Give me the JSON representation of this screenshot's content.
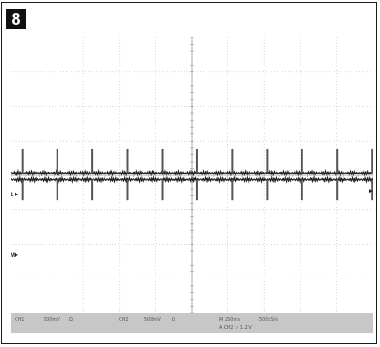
{
  "figure": {
    "number": "8"
  },
  "colors": {
    "background": "#ffffff",
    "grid": "#c8c8c8",
    "trace": "#202020",
    "status_bar": "#c7c7c7",
    "status_text": "#555555"
  },
  "chart_data": {
    "type": "line",
    "title": "",
    "xlabel": "",
    "ylabel": "",
    "grid": true,
    "x_divisions": 10,
    "y_divisions": 8,
    "ylim": [
      -4,
      4
    ],
    "xlim": [
      0,
      10
    ],
    "markers": [
      {
        "label": "1",
        "level": -0.55
      },
      {
        "label": "M",
        "level": -2.3
      }
    ],
    "series": [
      {
        "baseline": 0.07,
        "pulse_positions": [
          0.32,
          1.28,
          2.25,
          3.22,
          4.18,
          5.15,
          6.12,
          7.08,
          8.05,
          9.02,
          9.98
        ],
        "pulse_amplitude": 0.7,
        "pulse_negative": false
      },
      {
        "baseline": -0.12,
        "pulse_positions": [
          0.32,
          1.28,
          2.25,
          3.22,
          4.18,
          5.15,
          6.12,
          7.08,
          8.05,
          9.02,
          9.98
        ],
        "pulse_amplitude": 0.6,
        "pulse_negative": true
      }
    ],
    "status_line_1": [
      "CH1",
      "500mV",
      "Ω",
      "CH2",
      "500mV",
      "Ω",
      "M 250ms",
      "500kS/s"
    ],
    "status_line_2": "A CH2 ↗ 1.2 V"
  }
}
